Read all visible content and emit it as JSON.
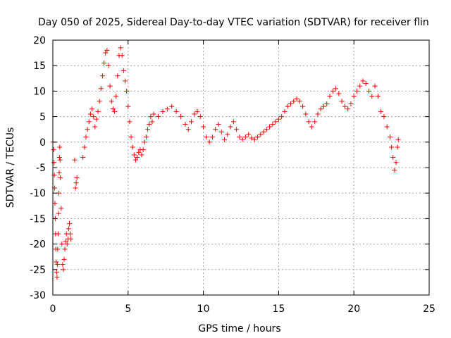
{
  "chart_data": {
    "type": "scatter",
    "title": "Day 050 of 2025, Sidereal Day-to-day VTEC variation (SDTVAR) for receiver flin",
    "xlabel": "GPS time / hours",
    "ylabel": "SDTVAR / TECUs",
    "xlim": [
      0,
      25
    ],
    "ylim": [
      -30,
      20
    ],
    "x_ticks": [
      0,
      5,
      10,
      15,
      20,
      25
    ],
    "y_ticks": [
      -30,
      -25,
      -20,
      -15,
      -10,
      -5,
      0,
      5,
      10,
      15,
      20
    ],
    "grid": true,
    "marker": "+",
    "color": "#ff0000",
    "series": [
      {
        "name": "SDTVAR",
        "points": [
          [
            0.0,
            0.0
          ],
          [
            0.05,
            -1.5
          ],
          [
            0.08,
            -4.0
          ],
          [
            0.1,
            -6.5
          ],
          [
            0.12,
            -9.0
          ],
          [
            0.14,
            -12.0
          ],
          [
            0.16,
            -15.0
          ],
          [
            0.18,
            -18.0
          ],
          [
            0.2,
            -21.0
          ],
          [
            0.22,
            -23.5
          ],
          [
            0.25,
            -25.5
          ],
          [
            0.28,
            -26.5
          ],
          [
            0.3,
            -24.0
          ],
          [
            0.32,
            -21.0
          ],
          [
            0.35,
            -18.0
          ],
          [
            0.38,
            -14.0
          ],
          [
            0.4,
            -10.0
          ],
          [
            0.42,
            -6.0
          ],
          [
            0.44,
            -3.0
          ],
          [
            0.46,
            -1.0
          ],
          [
            0.48,
            -3.5
          ],
          [
            0.5,
            -7.0
          ],
          [
            0.55,
            -13.0
          ],
          [
            0.6,
            -20.0
          ],
          [
            0.65,
            -24.0
          ],
          [
            0.7,
            -25.0
          ],
          [
            0.75,
            -23.0
          ],
          [
            0.8,
            -21.0
          ],
          [
            0.85,
            -19.5
          ],
          [
            0.9,
            -18.0
          ],
          [
            0.95,
            -20.0
          ],
          [
            1.0,
            -19.0
          ],
          [
            1.05,
            -17.0
          ],
          [
            1.1,
            -16.0
          ],
          [
            1.15,
            -18.0
          ],
          [
            1.2,
            -19.0
          ],
          [
            1.5,
            -9.0
          ],
          [
            1.55,
            -8.0
          ],
          [
            1.6,
            -7.0
          ],
          [
            1.45,
            -3.5
          ],
          [
            2.0,
            -3.0
          ],
          [
            2.1,
            -1.0
          ],
          [
            2.2,
            1.0
          ],
          [
            2.3,
            2.5
          ],
          [
            2.4,
            4.0
          ],
          [
            2.5,
            5.5
          ],
          [
            2.6,
            6.5
          ],
          [
            2.7,
            5.0
          ],
          [
            2.8,
            3.0
          ],
          [
            2.9,
            4.5
          ],
          [
            3.0,
            6.0
          ],
          [
            3.1,
            8.0
          ],
          [
            3.2,
            10.5
          ],
          [
            3.3,
            13.0
          ],
          [
            3.4,
            15.5
          ],
          [
            3.5,
            17.5
          ],
          [
            3.6,
            18.0
          ],
          [
            3.7,
            15.0
          ],
          [
            3.8,
            11.0
          ],
          [
            3.9,
            8.0
          ],
          [
            4.0,
            6.5
          ],
          [
            4.1,
            6.0
          ],
          [
            4.2,
            9.0
          ],
          [
            4.3,
            13.0
          ],
          [
            4.4,
            17.0
          ],
          [
            4.5,
            18.5
          ],
          [
            4.6,
            17.0
          ],
          [
            4.7,
            14.0
          ],
          [
            4.8,
            12.0
          ],
          [
            4.9,
            10.0
          ],
          [
            5.0,
            7.0
          ],
          [
            5.1,
            4.0
          ],
          [
            5.2,
            1.0
          ],
          [
            5.3,
            -1.0
          ],
          [
            5.4,
            -2.5
          ],
          [
            5.5,
            -3.5
          ],
          [
            5.6,
            -3.0
          ],
          [
            5.7,
            -2.0
          ],
          [
            5.8,
            -1.5
          ],
          [
            5.9,
            -2.5
          ],
          [
            6.0,
            -1.5
          ],
          [
            6.1,
            0.0
          ],
          [
            6.2,
            1.0
          ],
          [
            6.3,
            2.5
          ],
          [
            6.4,
            3.5
          ],
          [
            6.5,
            5.0
          ],
          [
            6.6,
            4.0
          ],
          [
            6.7,
            5.5
          ],
          [
            7.0,
            5.0
          ],
          [
            7.3,
            6.0
          ],
          [
            7.6,
            6.5
          ],
          [
            7.9,
            7.0
          ],
          [
            8.2,
            6.0
          ],
          [
            8.5,
            5.0
          ],
          [
            8.8,
            3.5
          ],
          [
            9.0,
            2.5
          ],
          [
            9.2,
            4.0
          ],
          [
            9.4,
            5.5
          ],
          [
            9.6,
            6.0
          ],
          [
            9.8,
            5.0
          ],
          [
            10.0,
            3.0
          ],
          [
            10.2,
            1.0
          ],
          [
            10.4,
            0.0
          ],
          [
            10.6,
            1.0
          ],
          [
            10.8,
            2.5
          ],
          [
            11.0,
            3.5
          ],
          [
            11.2,
            2.0
          ],
          [
            11.4,
            0.5
          ],
          [
            11.6,
            1.5
          ],
          [
            11.8,
            3.0
          ],
          [
            12.0,
            4.0
          ],
          [
            12.2,
            2.5
          ],
          [
            12.4,
            1.0
          ],
          [
            12.6,
            0.5
          ],
          [
            12.8,
            1.0
          ],
          [
            13.0,
            1.5
          ],
          [
            13.2,
            0.8
          ],
          [
            13.4,
            0.5
          ],
          [
            13.6,
            1.0
          ],
          [
            13.8,
            1.5
          ],
          [
            14.0,
            2.0
          ],
          [
            14.2,
            2.5
          ],
          [
            14.4,
            3.0
          ],
          [
            14.6,
            3.5
          ],
          [
            14.8,
            4.0
          ],
          [
            15.0,
            4.5
          ],
          [
            15.2,
            5.0
          ],
          [
            15.4,
            6.0
          ],
          [
            15.6,
            7.0
          ],
          [
            15.8,
            7.5
          ],
          [
            16.0,
            8.0
          ],
          [
            16.2,
            8.5
          ],
          [
            16.4,
            8.0
          ],
          [
            16.6,
            7.0
          ],
          [
            16.8,
            5.5
          ],
          [
            17.0,
            4.0
          ],
          [
            17.2,
            3.0
          ],
          [
            17.4,
            4.0
          ],
          [
            17.6,
            5.5
          ],
          [
            17.8,
            6.5
          ],
          [
            18.0,
            7.0
          ],
          [
            18.2,
            7.5
          ],
          [
            18.4,
            9.0
          ],
          [
            18.6,
            10.0
          ],
          [
            18.8,
            10.5
          ],
          [
            19.0,
            9.5
          ],
          [
            19.2,
            8.0
          ],
          [
            19.4,
            7.0
          ],
          [
            19.6,
            6.5
          ],
          [
            19.8,
            7.5
          ],
          [
            20.0,
            9.0
          ],
          [
            20.2,
            10.0
          ],
          [
            20.4,
            11.0
          ],
          [
            20.6,
            12.0
          ],
          [
            20.8,
            11.5
          ],
          [
            21.0,
            10.0
          ],
          [
            21.2,
            9.0
          ],
          [
            21.4,
            11.0
          ],
          [
            21.6,
            9.0
          ],
          [
            21.8,
            6.0
          ],
          [
            22.0,
            5.0
          ],
          [
            22.2,
            3.0
          ],
          [
            22.4,
            1.0
          ],
          [
            22.5,
            -1.0
          ],
          [
            22.6,
            -3.0
          ],
          [
            22.7,
            -5.5
          ],
          [
            22.8,
            -4.0
          ],
          [
            22.9,
            -1.0
          ],
          [
            22.95,
            0.5
          ]
        ]
      }
    ]
  }
}
